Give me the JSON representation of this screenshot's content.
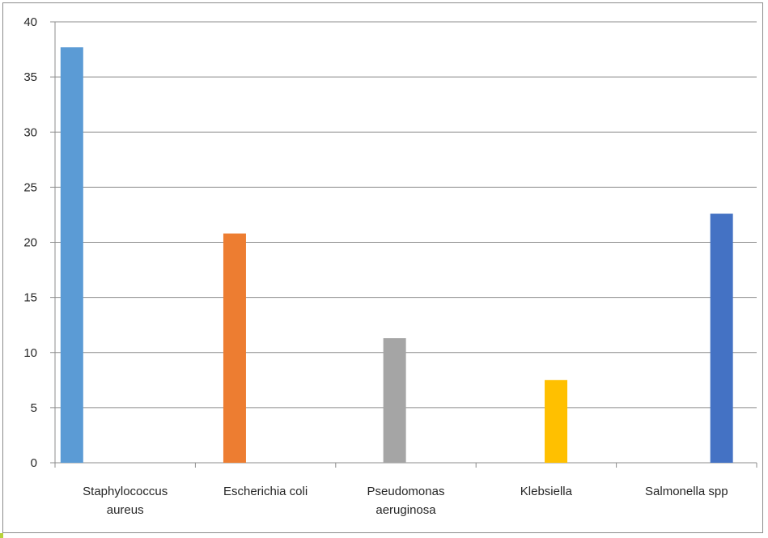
{
  "chart_data": {
    "type": "bar",
    "title": "",
    "xlabel": "",
    "ylabel": "",
    "categories": [
      [
        "Staphylococcus",
        "aureus"
      ],
      [
        "Escherichia coli"
      ],
      [
        "Pseudomonas",
        "aeruginosa"
      ],
      [
        "Klebsiella"
      ],
      [
        "Salmonella spp"
      ]
    ],
    "values": [
      37.7,
      20.8,
      11.3,
      7.5,
      22.6
    ],
    "colors": [
      "#5b9bd5",
      "#ed7d31",
      "#a5a5a5",
      "#ffc000",
      "#4472c4"
    ],
    "ylim": [
      0,
      40
    ],
    "yticks": [
      0,
      5,
      10,
      15,
      20,
      25,
      30,
      35,
      40
    ],
    "grid": true,
    "legend": "none",
    "gridline_color": "#8c8c8c"
  }
}
